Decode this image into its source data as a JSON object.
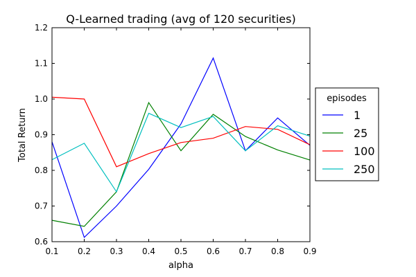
{
  "chart_data": {
    "type": "line",
    "title": "Q-Learned trading (avg of 120 securities)",
    "xlabel": "alpha",
    "ylabel": "Total Return",
    "xlim": [
      0.1,
      0.9
    ],
    "ylim": [
      0.6,
      1.2
    ],
    "x_ticks": [
      "0.1",
      "0.2",
      "0.3",
      "0.4",
      "0.5",
      "0.6",
      "0.7",
      "0.8",
      "0.9"
    ],
    "y_ticks": [
      "0.6",
      "0.7",
      "0.8",
      "0.9",
      "1.0",
      "1.1",
      "1.2"
    ],
    "grid": false,
    "legend": {
      "title": "episodes",
      "placement": "outside-right"
    },
    "x": [
      0.1,
      0.2,
      0.3,
      0.4,
      0.5,
      0.6,
      0.7,
      0.8,
      0.9
    ],
    "series": [
      {
        "name": "1",
        "color": "#0000ff",
        "values": [
          0.88,
          0.612,
          0.7,
          0.803,
          0.93,
          1.115,
          0.855,
          0.947,
          0.87
        ]
      },
      {
        "name": "25",
        "color": "#008000",
        "values": [
          0.66,
          0.643,
          0.74,
          0.99,
          0.855,
          0.957,
          0.895,
          0.857,
          0.829
        ]
      },
      {
        "name": "100",
        "color": "#ff0000",
        "values": [
          1.005,
          1.0,
          0.81,
          0.847,
          0.878,
          0.89,
          0.923,
          0.915,
          0.872
        ]
      },
      {
        "name": "250",
        "color": "#00bfbf",
        "values": [
          0.83,
          0.876,
          0.74,
          0.96,
          0.92,
          0.951,
          0.855,
          0.925,
          0.896
        ]
      }
    ]
  }
}
